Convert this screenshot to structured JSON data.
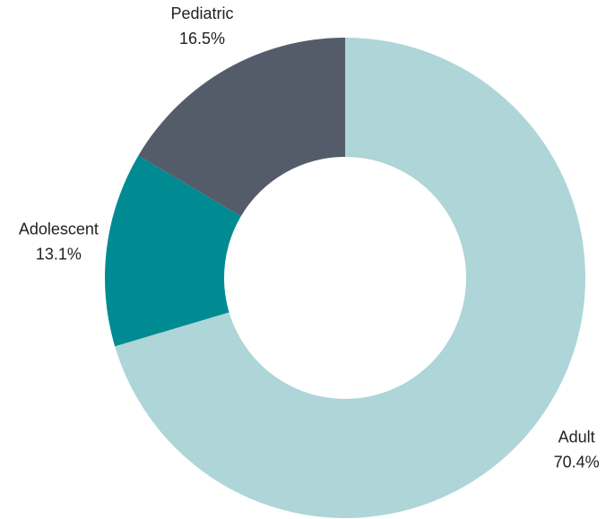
{
  "chart_data": {
    "type": "donut",
    "categories": [
      "Adult",
      "Adolescent",
      "Pediatric"
    ],
    "values": [
      70.4,
      13.1,
      16.5
    ],
    "value_labels": [
      "70.4%",
      "13.1%",
      "16.5%"
    ],
    "colors": [
      "#aed5d7",
      "#008b93",
      "#555c69"
    ]
  }
}
